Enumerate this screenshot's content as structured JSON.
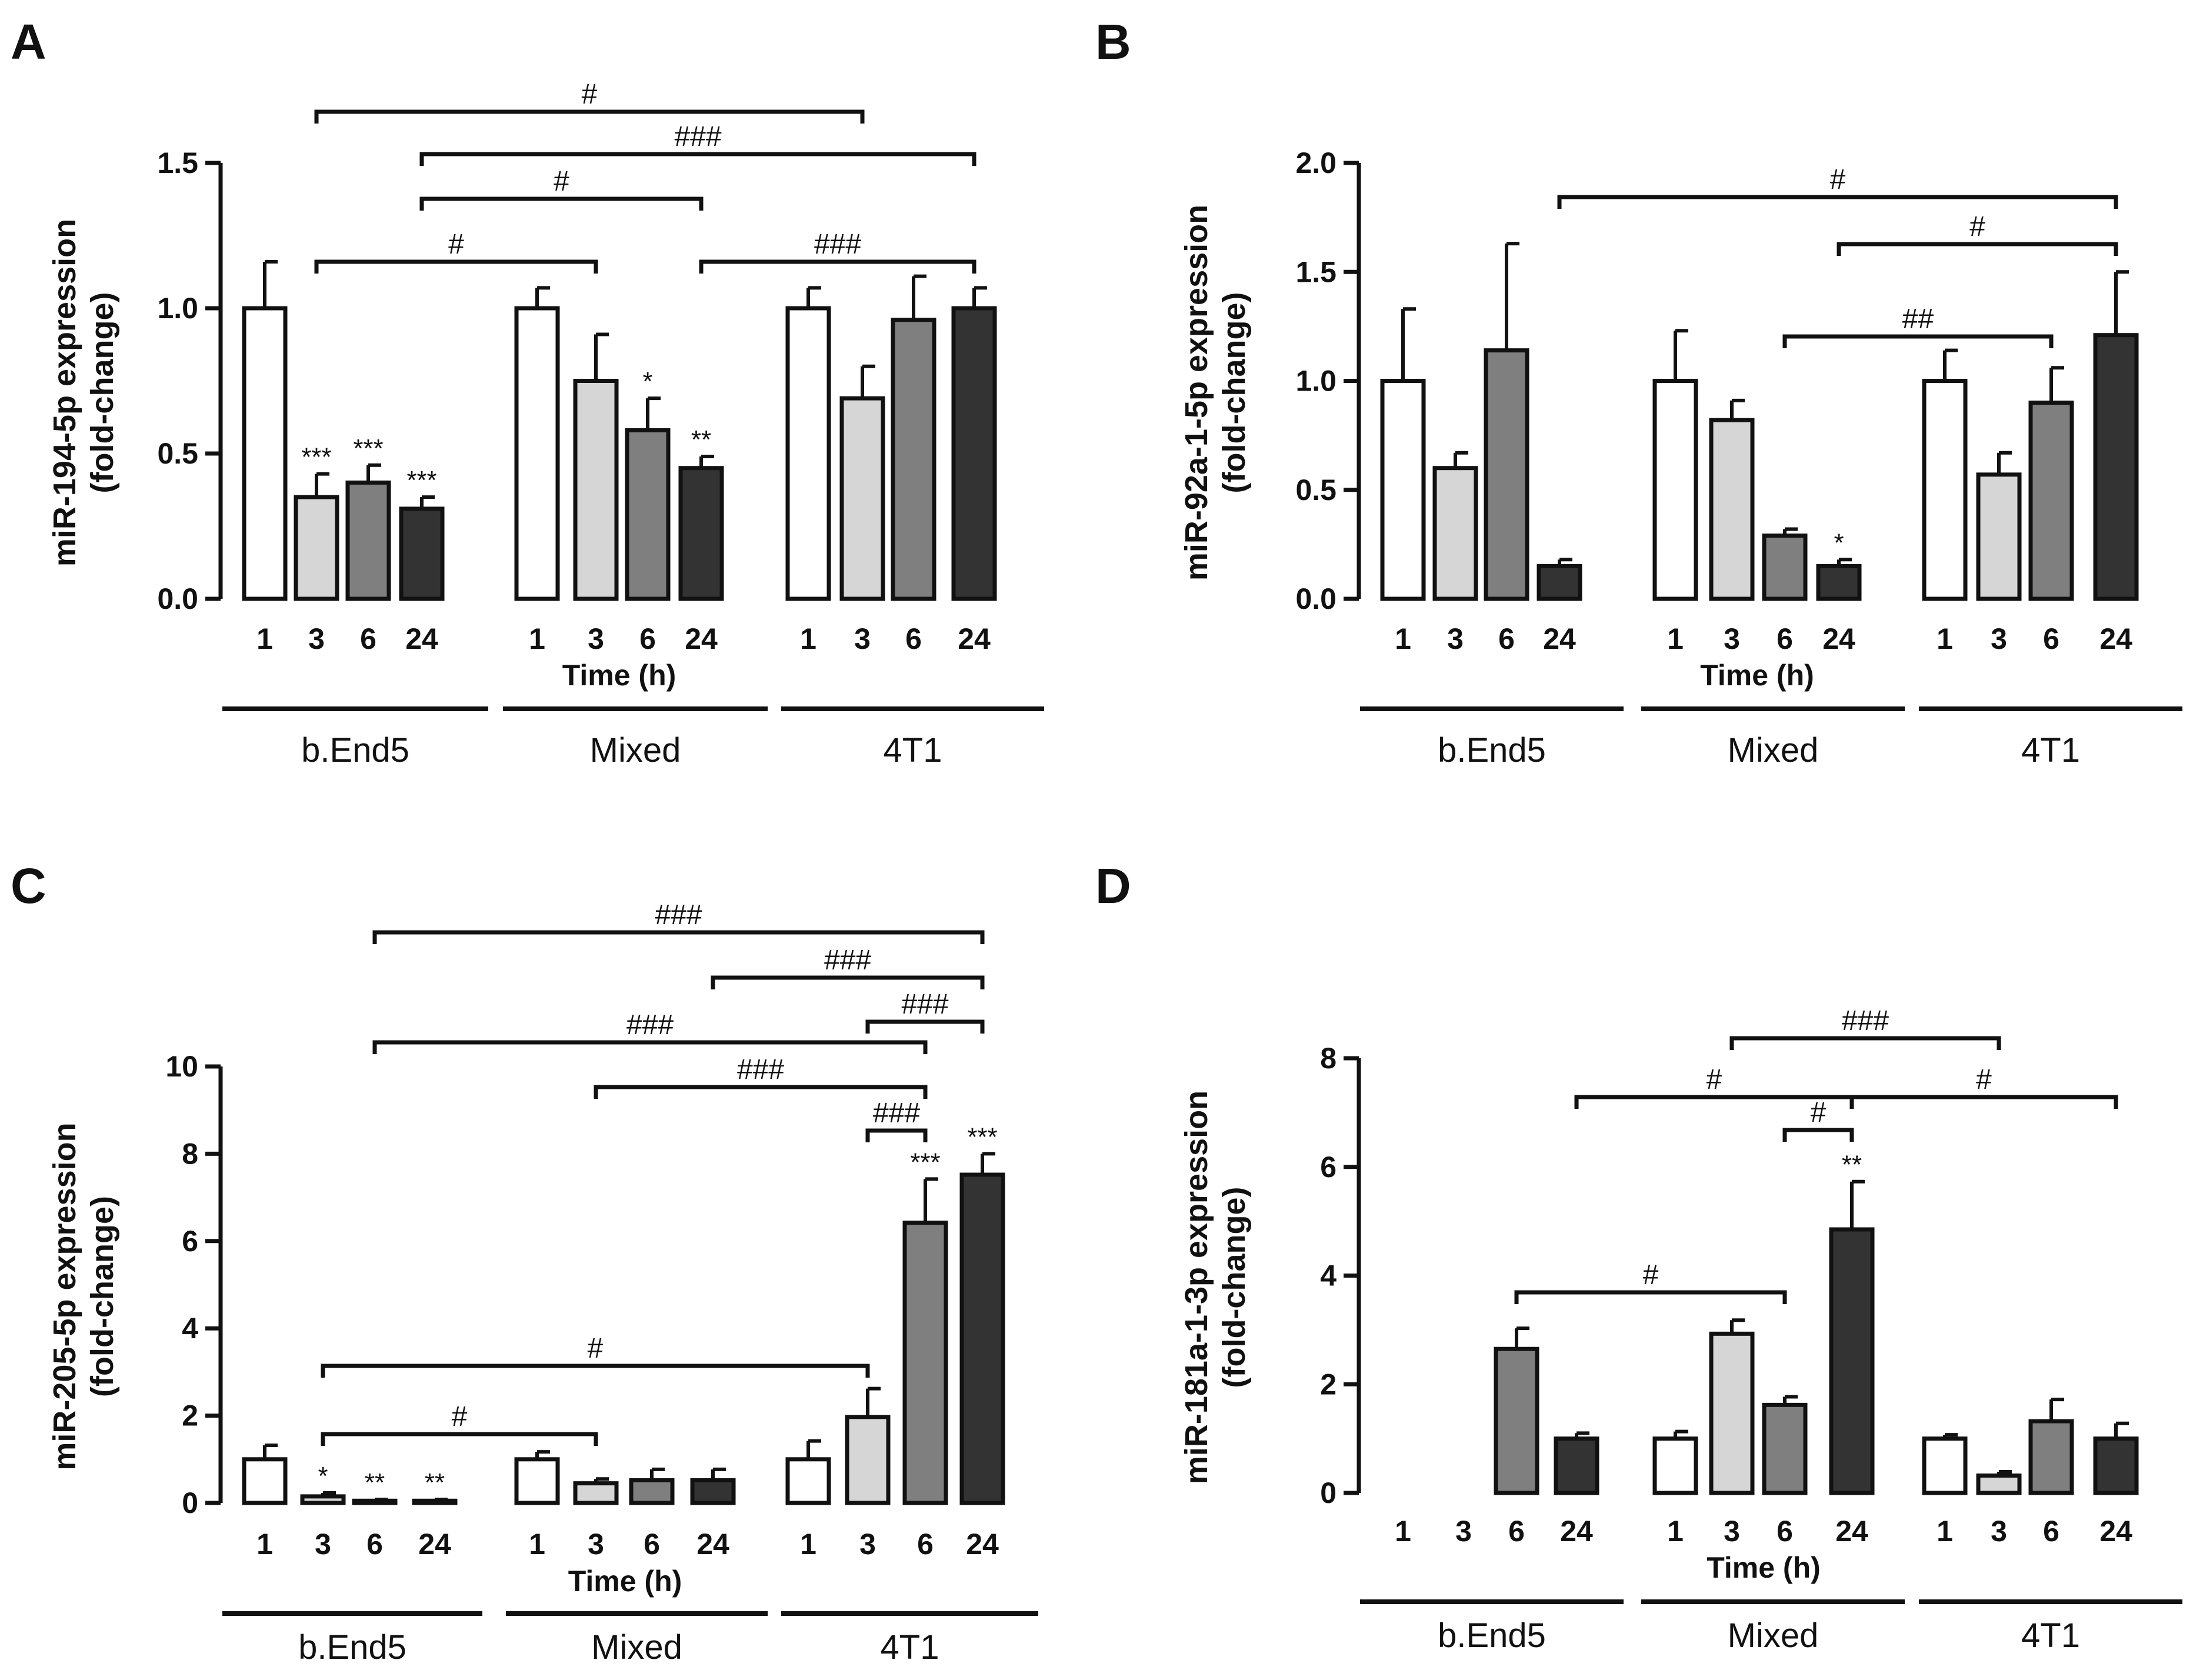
{
  "chart_data": [
    {
      "panel": "A",
      "type": "bar",
      "ylabel_line1": "miR-194-5p expression",
      "ylabel_line2": "(fold-change)",
      "xlabel": "Time (h)",
      "yticks": [
        "0.0",
        "0.5",
        "1.0",
        "1.5"
      ],
      "ylim": [
        0,
        1.5
      ],
      "groups": [
        {
          "name": "b.End5",
          "times": [
            "1",
            "3",
            "6",
            "24"
          ],
          "values": [
            1.0,
            0.35,
            0.4,
            0.31
          ],
          "errors": [
            0.16,
            0.08,
            0.06,
            0.04
          ],
          "sig": [
            "",
            "***",
            "***",
            "***"
          ]
        },
        {
          "name": "Mixed",
          "times": [
            "1",
            "3",
            "6",
            "24"
          ],
          "values": [
            1.0,
            0.75,
            0.58,
            0.45
          ],
          "errors": [
            0.07,
            0.16,
            0.11,
            0.04
          ],
          "sig": [
            "",
            "",
            "*",
            "**"
          ]
        },
        {
          "name": "4T1",
          "times": [
            "1",
            "3",
            "6",
            "24"
          ],
          "values": [
            1.0,
            0.69,
            0.96,
            1.0
          ],
          "errors": [
            0.07,
            0.11,
            0.15,
            0.07
          ],
          "sig": [
            "",
            "",
            "",
            ""
          ]
        }
      ],
      "brackets": [
        {
          "from": [
            0,
            1
          ],
          "to": [
            2,
            1
          ],
          "level": 0,
          "label": "#"
        },
        {
          "from": [
            0,
            3
          ],
          "to": [
            2,
            3
          ],
          "level": 1,
          "label": "###"
        },
        {
          "from": [
            0,
            3
          ],
          "to": [
            1,
            3
          ],
          "level": 2,
          "label": "#"
        },
        {
          "from": [
            0,
            1
          ],
          "to": [
            1,
            1
          ],
          "level": 3,
          "label": "#"
        },
        {
          "from": [
            1,
            3
          ],
          "to": [
            2,
            3
          ],
          "level": 3,
          "label": "###"
        }
      ]
    },
    {
      "panel": "B",
      "type": "bar",
      "ylabel_line1": "miR-92a-1-5p expression",
      "ylabel_line2": "(fold-change)",
      "xlabel": "Time (h)",
      "yticks": [
        "0.0",
        "0.5",
        "1.0",
        "1.5",
        "2.0"
      ],
      "ylim": [
        0,
        2.0
      ],
      "groups": [
        {
          "name": "b.End5",
          "times": [
            "1",
            "3",
            "6",
            "24"
          ],
          "values": [
            1.0,
            0.6,
            1.14,
            0.15
          ],
          "errors": [
            0.33,
            0.07,
            0.49,
            0.03
          ],
          "sig": [
            "",
            "",
            "",
            ""
          ]
        },
        {
          "name": "Mixed",
          "times": [
            "1",
            "3",
            "6",
            "24"
          ],
          "values": [
            1.0,
            0.82,
            0.29,
            0.15
          ],
          "errors": [
            0.23,
            0.09,
            0.03,
            0.03
          ],
          "sig": [
            "",
            "",
            "",
            "*"
          ]
        },
        {
          "name": "4T1",
          "times": [
            "1",
            "3",
            "6",
            "24"
          ],
          "values": [
            1.0,
            0.57,
            0.9,
            1.21
          ],
          "errors": [
            0.14,
            0.1,
            0.16,
            0.29
          ],
          "sig": [
            "",
            "",
            "",
            ""
          ]
        }
      ],
      "brackets": [
        {
          "from": [
            0,
            3
          ],
          "to": [
            2,
            3
          ],
          "level": 0,
          "label": "#"
        },
        {
          "from": [
            1,
            3
          ],
          "to": [
            2,
            3
          ],
          "level": 1,
          "label": "#"
        },
        {
          "from": [
            1,
            2
          ],
          "to": [
            2,
            2
          ],
          "level": 2,
          "label": "##"
        }
      ]
    },
    {
      "panel": "C",
      "type": "bar",
      "ylabel_line1": "miR-205-5p expression",
      "ylabel_line2": "(fold-change)",
      "xlabel": "Time (h)",
      "yticks": [
        "0",
        "2",
        "4",
        "6",
        "8",
        "10"
      ],
      "ylim": [
        0,
        10
      ],
      "groups": [
        {
          "name": "b.End5",
          "times": [
            "1",
            "3",
            "6",
            "24"
          ],
          "values": [
            1.0,
            0.15,
            0.05,
            0.05
          ],
          "errors": [
            0.32,
            0.08,
            0.03,
            0.03
          ],
          "sig": [
            "",
            "*",
            "**",
            "**"
          ]
        },
        {
          "name": "Mixed",
          "times": [
            "1",
            "3",
            "6",
            "24"
          ],
          "values": [
            1.0,
            0.45,
            0.52,
            0.52
          ],
          "errors": [
            0.17,
            0.1,
            0.25,
            0.25
          ],
          "sig": [
            "",
            "",
            "",
            ""
          ]
        },
        {
          "name": "4T1",
          "times": [
            "1",
            "3",
            "6",
            "24"
          ],
          "values": [
            1.0,
            1.97,
            6.42,
            7.52
          ],
          "errors": [
            0.42,
            0.65,
            1.0,
            0.48
          ],
          "sig": [
            "",
            "",
            "***",
            "***"
          ]
        }
      ],
      "brackets": [
        {
          "from": [
            0,
            2
          ],
          "to": [
            2,
            3
          ],
          "level": 0,
          "label": "###"
        },
        {
          "from": [
            1,
            3
          ],
          "to": [
            2,
            3
          ],
          "level": 1,
          "label": "###"
        },
        {
          "from": [
            2,
            1
          ],
          "to": [
            2,
            3
          ],
          "level": 2,
          "label": "###"
        },
        {
          "from": [
            0,
            2
          ],
          "to": [
            2,
            2
          ],
          "level": 3,
          "label": "###"
        },
        {
          "from": [
            1,
            1
          ],
          "to": [
            2,
            2
          ],
          "level": 4,
          "label": "###"
        },
        {
          "from": [
            2,
            1
          ],
          "to": [
            2,
            2
          ],
          "level": 5,
          "label": "###"
        },
        {
          "from": [
            0,
            1
          ],
          "to": [
            2,
            1
          ],
          "level": 6,
          "label": "#"
        },
        {
          "from": [
            0,
            1
          ],
          "to": [
            1,
            1
          ],
          "level": 7,
          "label": "#"
        }
      ]
    },
    {
      "panel": "D",
      "type": "bar",
      "ylabel_line1": "miR-181a-1-3p expression",
      "ylabel_line2": "(fold-change)",
      "xlabel": "Time (h)",
      "yticks": [
        "0",
        "2",
        "4",
        "6",
        "8"
      ],
      "ylim": [
        0,
        8
      ],
      "groups": [
        {
          "name": "b.End5",
          "times": [
            "1",
            "3",
            "6",
            "24"
          ],
          "values": [
            0,
            0,
            2.65,
            1.0
          ],
          "errors": [
            0,
            0,
            0.38,
            0.1
          ],
          "sig": [
            "",
            "",
            "",
            ""
          ]
        },
        {
          "name": "Mixed",
          "times": [
            "1",
            "3",
            "6",
            "24"
          ],
          "values": [
            1.0,
            2.93,
            1.62,
            4.85
          ],
          "errors": [
            0.13,
            0.25,
            0.15,
            0.88
          ],
          "sig": [
            "",
            "",
            "",
            "**"
          ]
        },
        {
          "name": "4T1",
          "times": [
            "1",
            "3",
            "6",
            "24"
          ],
          "values": [
            1.0,
            0.32,
            1.32,
            1.0
          ],
          "errors": [
            0.07,
            0.07,
            0.4,
            0.28
          ],
          "sig": [
            "",
            "",
            "",
            ""
          ]
        }
      ],
      "brackets": [
        {
          "from": [
            1,
            1
          ],
          "to": [
            2,
            1
          ],
          "level": 0,
          "label": "###"
        },
        {
          "from": [
            0,
            3
          ],
          "to": [
            1,
            3
          ],
          "level": 1,
          "label": "#"
        },
        {
          "from": [
            1,
            3
          ],
          "to": [
            2,
            3
          ],
          "level": 1,
          "label": "#"
        },
        {
          "from": [
            1,
            2
          ],
          "to": [
            1,
            3
          ],
          "level": 2,
          "label": "#"
        },
        {
          "from": [
            0,
            2
          ],
          "to": [
            1,
            2
          ],
          "level": 3,
          "label": "#"
        }
      ]
    }
  ],
  "bar_colors": [
    "#ffffff",
    "#d6d6d6",
    "#7f7f7f",
    "#333333"
  ]
}
